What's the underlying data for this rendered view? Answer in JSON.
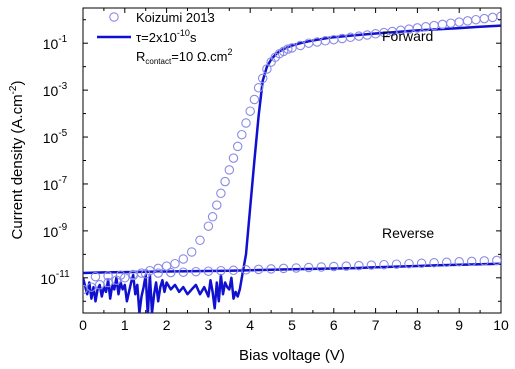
{
  "chart_data": {
    "type": "line",
    "xlabel": "Bias voltage (V)",
    "ylabel": "Current density (A.cm",
    "ylabel_exp": "-2",
    "ylabel_close": ")",
    "xlim": [
      0,
      10
    ],
    "ylim_log10": [
      -12.5,
      0.5
    ],
    "log_y": true,
    "x_ticks": [
      "0",
      "1",
      "2",
      "3",
      "4",
      "5",
      "6",
      "7",
      "8",
      "9",
      "10"
    ],
    "y_ticks": [
      {
        "base": "10",
        "exp": "-1"
      },
      {
        "base": "10",
        "exp": "-3"
      },
      {
        "base": "10",
        "exp": "-5"
      },
      {
        "base": "10",
        "exp": "-7"
      },
      {
        "base": "10",
        "exp": "-9"
      },
      {
        "base": "10",
        "exp": "-11"
      }
    ],
    "y_tick_exponents": [
      -1,
      -3,
      -5,
      -7,
      -9,
      -11
    ],
    "annotations": {
      "forward": "Forward",
      "reverse": "Reverse"
    },
    "legend": {
      "placement": "top-left",
      "koizumi": "Koizumi 2013",
      "tau_prefix": "τ=2x10",
      "tau_exp": "-10",
      "tau_suffix": "s",
      "r_base": "R",
      "r_sub": "contact",
      "r_mid": "=10 Ω.cm",
      "r_exp": "2"
    },
    "colors": {
      "model_line": "#1010d0",
      "koizumi_marker": "#8a8ae6",
      "axis": "#000000"
    },
    "series": [
      {
        "name": "Koizumi 2013",
        "style": "open-circles",
        "forward_x": [
          0.0,
          0.2,
          0.4,
          0.6,
          0.8,
          1.0,
          1.2,
          1.4,
          1.6,
          1.8,
          2.0,
          2.2,
          2.4,
          2.6,
          2.8,
          3.0,
          3.1,
          3.2,
          3.3,
          3.4,
          3.5,
          3.6,
          3.7,
          3.8,
          3.9,
          4.0,
          4.1,
          4.2,
          4.3,
          4.4,
          4.5,
          4.6,
          4.7,
          4.8,
          4.9,
          5.0,
          5.2,
          5.4,
          5.6,
          5.8,
          6.0,
          6.2,
          6.4,
          6.6,
          6.8,
          7.0,
          7.2,
          7.4,
          7.6,
          7.8,
          8.0,
          8.2,
          8.4,
          8.6,
          8.8,
          9.0,
          9.2,
          9.4,
          9.6,
          9.8,
          10.0
        ],
        "forward_y": [
          3.16e-12,
          3.98e-12,
          5.01e-12,
          6.31e-12,
          7.94e-12,
          1e-11,
          1.26e-11,
          1.58e-11,
          2e-11,
          2.51e-11,
          3.16e-11,
          3.98e-11,
          6.31e-11,
          1.26e-10,
          3.98e-10,
          1.58e-09,
          3.98e-09,
          1.26e-08,
          3.98e-08,
          1.26e-07,
          3.98e-07,
          1.26e-06,
          3.98e-06,
          1.26e-05,
          3.98e-05,
          0.000126,
          0.000398,
          0.00126,
          0.00316,
          0.00794,
          0.0158,
          0.0251,
          0.0355,
          0.0447,
          0.0562,
          0.0631,
          0.0794,
          0.1,
          0.112,
          0.126,
          0.141,
          0.158,
          0.178,
          0.2,
          0.224,
          0.251,
          0.282,
          0.316,
          0.355,
          0.398,
          0.447,
          0.501,
          0.562,
          0.631,
          0.708,
          0.794,
          0.891,
          1.0,
          1.12,
          1.26,
          1.41
        ],
        "reverse_x": [
          0.3,
          0.6,
          0.9,
          1.2,
          1.5,
          1.8,
          2.1,
          2.4,
          2.7,
          3.0,
          3.3,
          3.6,
          3.9,
          4.2,
          4.5,
          4.8,
          5.1,
          5.4,
          5.7,
          6.0,
          6.3,
          6.6,
          6.9,
          7.2,
          7.5,
          7.8,
          8.1,
          8.4,
          8.7,
          9.0,
          9.3,
          9.6,
          9.9
        ],
        "reverse_y": [
          1.12e-11,
          1.2e-11,
          1.29e-11,
          1.38e-11,
          1.48e-11,
          1.58e-11,
          1.66e-11,
          1.74e-11,
          1.82e-11,
          1.91e-11,
          2e-11,
          2.09e-11,
          2.19e-11,
          2.29e-11,
          2.4e-11,
          2.51e-11,
          2.63e-11,
          2.75e-11,
          2.88e-11,
          3.02e-11,
          3.16e-11,
          3.31e-11,
          3.47e-11,
          3.63e-11,
          3.8e-11,
          3.98e-11,
          4.17e-11,
          4.37e-11,
          4.57e-11,
          4.79e-11,
          5.01e-11,
          5.25e-11,
          5.5e-11
        ]
      },
      {
        "name": "τ=2x10-10 s",
        "style": "solid-line",
        "forward_x": [
          0.0,
          0.1,
          0.15,
          0.2,
          0.25,
          0.3,
          0.35,
          0.4,
          0.45,
          0.5,
          0.55,
          0.6,
          0.65,
          0.7,
          0.75,
          0.8,
          0.85,
          0.9,
          0.95,
          1.0,
          1.05,
          1.1,
          1.15,
          1.2,
          1.25,
          1.3,
          1.35,
          1.4,
          1.45,
          1.5,
          1.55,
          1.6,
          1.65,
          1.7,
          1.75,
          1.8,
          1.85,
          1.9,
          1.95,
          2.0,
          2.1,
          2.2,
          2.3,
          2.4,
          2.5,
          2.6,
          2.7,
          2.8,
          2.9,
          3.0,
          3.05,
          3.1,
          3.15,
          3.2,
          3.25,
          3.3,
          3.35,
          3.4,
          3.45,
          3.5,
          3.55,
          3.6,
          3.65,
          3.7,
          3.75,
          3.8,
          3.9,
          4.0,
          4.1,
          4.2,
          4.3,
          4.4,
          4.5,
          4.6,
          4.7,
          4.8,
          4.9,
          5.0,
          5.2,
          5.4,
          5.6,
          5.8,
          6.0,
          6.5,
          7.0,
          7.5,
          8.0,
          8.5,
          9.0,
          9.5,
          10.0
        ],
        "forward_y": [
          1e-11,
          2e-12,
          6.3e-12,
          1.3e-12,
          4e-12,
          1e-12,
          3.2e-12,
          5e-12,
          1.6e-12,
          4e-12,
          2.5e-12,
          7.9e-12,
          1.3e-12,
          5e-12,
          3.2e-12,
          1e-11,
          2e-12,
          6.3e-12,
          3.2e-12,
          5e-12,
          1e-12,
          2.5e-12,
          6.3e-12,
          1.3e-11,
          2e-12,
          5e-12,
          3.2e-13,
          1.6e-12,
          4e-12,
          1.3e-11,
          2.5e-13,
          1.3e-11,
          3.2e-13,
          2e-12,
          6.3e-12,
          1e-12,
          4e-12,
          7.9e-12,
          2.5e-12,
          6.3e-12,
          3.2e-12,
          5e-12,
          2.5e-12,
          4e-12,
          2e-12,
          3.2e-12,
          5e-12,
          2e-12,
          4e-12,
          1.6e-12,
          7.9e-12,
          2.5e-12,
          5e-13,
          6.3e-12,
          1e-12,
          1.3e-11,
          2e-12,
          6.3e-12,
          4e-12,
          3.2e-12,
          1e-11,
          1.3e-12,
          2.5e-12,
          1.6e-12,
          3.2e-12,
          1e-11,
          1e-10,
          1e-08,
          1e-06,
          7.9e-05,
          0.0025,
          0.01,
          0.02,
          0.032,
          0.045,
          0.056,
          0.068,
          0.079,
          0.1,
          0.12,
          0.14,
          0.16,
          0.18,
          0.22,
          0.26,
          0.3,
          0.35,
          0.39,
          0.44,
          0.5,
          0.56
        ],
        "reverse_x": [
          0.0,
          0.5,
          1.0,
          1.5,
          2.0,
          2.5,
          3.0,
          3.5,
          4.0,
          4.5,
          5.0,
          5.5,
          6.0,
          6.5,
          7.0,
          7.5,
          8.0,
          8.5,
          9.0,
          9.5,
          10.0
        ],
        "reverse_y": [
          1.6e-11,
          1.7e-11,
          1.75e-11,
          1.8e-11,
          1.85e-11,
          1.9e-11,
          1.95e-11,
          2e-11,
          2.1e-11,
          2.2e-11,
          2.3e-11,
          2.4e-11,
          2.5e-11,
          2.6e-11,
          2.8e-11,
          3e-11,
          3.2e-11,
          3.4e-11,
          3.6e-11,
          3.8e-11,
          4e-11
        ]
      }
    ]
  }
}
